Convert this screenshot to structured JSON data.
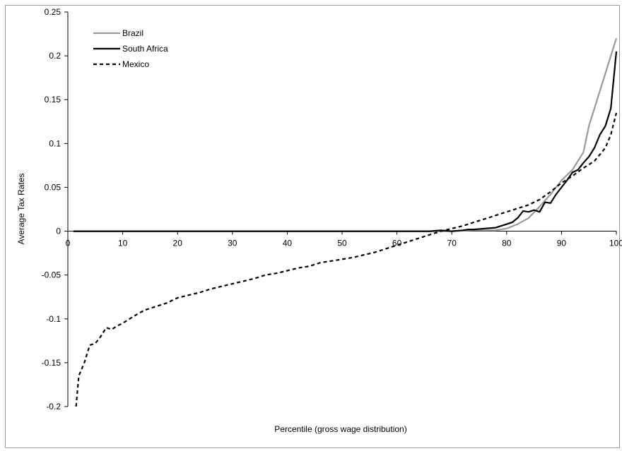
{
  "chart_data": {
    "type": "line",
    "title": "",
    "xlabel": "Percentile (gross wage distribution)",
    "ylabel": "Average Tax Rates",
    "xlim": [
      0,
      100
    ],
    "ylim": [
      -0.2,
      0.25
    ],
    "x_ticks": [
      0,
      10,
      20,
      30,
      40,
      50,
      60,
      70,
      80,
      90,
      100
    ],
    "x_tick_labels": [
      "0",
      "10",
      "20",
      "30",
      "40",
      "50",
      "60",
      "70",
      "80",
      "90",
      "100"
    ],
    "y_ticks": [
      -0.2,
      -0.15,
      -0.1,
      -0.05,
      0,
      0.05,
      0.1,
      0.15,
      0.2,
      0.25
    ],
    "y_tick_labels": [
      "-0.2",
      "-0.15",
      "-0.1",
      "-0.05",
      "0",
      "0.05",
      "0.1",
      "0.15",
      "0.2",
      "0.25"
    ],
    "grid": false,
    "legend_position": "top-left",
    "series": [
      {
        "name": "Brazil",
        "color": "#999999",
        "dash": "solid",
        "x": [
          1,
          10,
          20,
          30,
          40,
          50,
          60,
          68,
          70,
          72,
          74,
          76,
          78,
          80,
          82,
          84,
          86,
          88,
          90,
          92,
          94,
          95,
          96,
          97,
          98,
          99,
          100
        ],
        "y": [
          0,
          0,
          0,
          0,
          0,
          0,
          0,
          0,
          0,
          0.0005,
          0.001,
          0.001,
          0.001,
          0.003,
          0.008,
          0.015,
          0.028,
          0.042,
          0.058,
          0.07,
          0.09,
          0.12,
          0.14,
          0.16,
          0.18,
          0.2,
          0.22
        ]
      },
      {
        "name": "South Africa",
        "color": "#000000",
        "dash": "solid",
        "x": [
          1,
          10,
          20,
          30,
          40,
          50,
          60,
          66,
          68,
          70,
          72,
          73,
          74,
          76,
          78,
          80,
          81,
          82,
          83,
          84,
          85,
          86,
          87,
          88,
          89,
          90,
          91,
          92,
          93,
          94,
          95,
          96,
          97,
          98,
          99,
          100
        ],
        "y": [
          0,
          0,
          0,
          0,
          0,
          0,
          0,
          0,
          0.001,
          0,
          0.001,
          0.002,
          0.002,
          0.003,
          0.004,
          0.008,
          0.01,
          0.015,
          0.023,
          0.022,
          0.024,
          0.022,
          0.033,
          0.032,
          0.042,
          0.05,
          0.058,
          0.067,
          0.07,
          0.078,
          0.085,
          0.095,
          0.11,
          0.12,
          0.14,
          0.205
        ]
      },
      {
        "name": "Mexico",
        "color": "#000000",
        "dash": "dashed",
        "x": [
          1.5,
          2,
          3,
          4,
          5,
          6,
          7,
          8,
          9,
          10,
          12,
          14,
          16,
          18,
          20,
          22,
          24,
          26,
          28,
          30,
          32,
          34,
          36,
          38,
          40,
          42,
          44,
          46,
          48,
          50,
          52,
          54,
          56,
          58,
          60,
          62,
          64,
          66,
          68,
          70,
          72,
          74,
          76,
          78,
          80,
          82,
          84,
          86,
          88,
          90,
          92,
          94,
          96,
          98,
          99,
          100
        ],
        "y": [
          -0.2,
          -0.165,
          -0.15,
          -0.13,
          -0.128,
          -0.12,
          -0.11,
          -0.112,
          -0.108,
          -0.105,
          -0.097,
          -0.09,
          -0.086,
          -0.082,
          -0.076,
          -0.073,
          -0.07,
          -0.066,
          -0.063,
          -0.06,
          -0.057,
          -0.054,
          -0.05,
          -0.048,
          -0.045,
          -0.042,
          -0.04,
          -0.036,
          -0.034,
          -0.032,
          -0.03,
          -0.027,
          -0.024,
          -0.02,
          -0.016,
          -0.012,
          -0.008,
          -0.004,
          0,
          0.003,
          0.006,
          0.01,
          0.014,
          0.018,
          0.022,
          0.026,
          0.03,
          0.036,
          0.045,
          0.055,
          0.063,
          0.072,
          0.08,
          0.095,
          0.11,
          0.135
        ]
      }
    ]
  }
}
